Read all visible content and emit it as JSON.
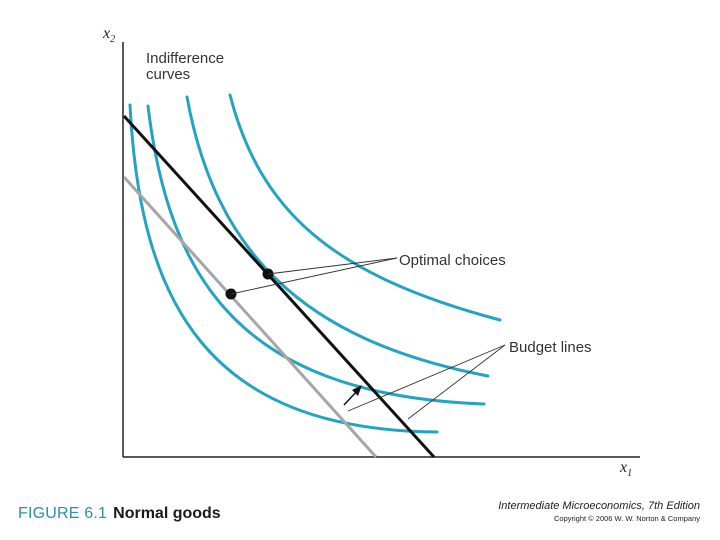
{
  "diagram": {
    "y_axis_label": "x",
    "y_axis_subscript": "2",
    "x_axis_label": "x",
    "x_axis_subscript": "1",
    "curves_label_line1": "Indifference",
    "curves_label_line2": "curves",
    "optimal_label": "Optimal choices",
    "budget_label": "Budget lines",
    "colors": {
      "indifference": "#23a4c0",
      "budget_new": "#111111",
      "budget_old": "#a6a6a6",
      "leader": "#333333"
    }
  },
  "caption": {
    "figure_number": "FIGURE 6.1",
    "title": "Normal goods"
  },
  "credit": {
    "book": "Intermediate Microeconomics, 7th Edition",
    "copyright": "Copyright © 2006 W. W. Norton & Company"
  }
}
